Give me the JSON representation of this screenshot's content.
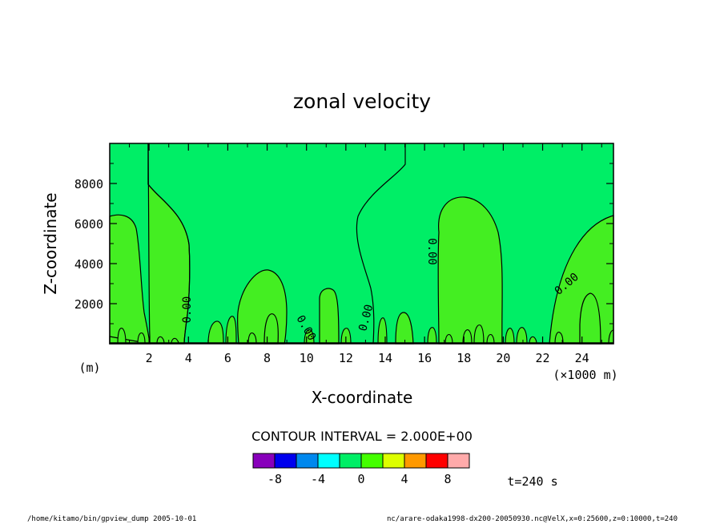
{
  "chart_data": {
    "type": "contour",
    "title": "zonal velocity",
    "xlabel": "X-coordinate",
    "ylabel": "Z-coordinate",
    "x_unit_label": "(×1000 m)",
    "y_unit_label": "(m)",
    "xlim": [
      0,
      25.6
    ],
    "ylim": [
      0,
      10000
    ],
    "x_ticks": [
      "2",
      "4",
      "6",
      "8",
      "10",
      "12",
      "14",
      "16",
      "18",
      "20",
      "22",
      "24"
    ],
    "x_tick_values": [
      2,
      4,
      6,
      8,
      10,
      12,
      14,
      16,
      18,
      20,
      22,
      24
    ],
    "y_ticks": [
      "2000",
      "4000",
      "6000",
      "8000"
    ],
    "y_tick_values": [
      2000,
      4000,
      6000,
      8000
    ],
    "contour_labels": [
      {
        "text": "0.00",
        "x": 3.9,
        "z": 1700,
        "angle": -90
      },
      {
        "text": "0.00",
        "x": 10.0,
        "z": 800,
        "angle": 60
      },
      {
        "text": "0.00",
        "x": 13.0,
        "z": 1300,
        "angle": -75
      },
      {
        "text": "0.00",
        "x": 16.4,
        "z": 4600,
        "angle": 90
      },
      {
        "text": "0.00",
        "x": 23.2,
        "z": 3000,
        "angle": -40
      }
    ],
    "contour_interval_text": "CONTOUR INTERVAL = 2.000E+00",
    "colorbar": {
      "colors": [
        "#8800bb",
        "#0000ee",
        "#0088ee",
        "#00ffff",
        "#00ee66",
        "#44ff00",
        "#ddff00",
        "#ff9900",
        "#ff0000",
        "#ffaaaa"
      ],
      "tick_labels": [
        "-8",
        "-4",
        "0",
        "4",
        "8"
      ],
      "tick_values": [
        -8,
        -4,
        0,
        4,
        8
      ]
    },
    "fill_colors": {
      "negative": "#00ee66",
      "positive": "#44ee22"
    }
  },
  "annotations": {
    "time": "t=240 s",
    "footer_left": "/home/kitamo/bin/gpview_dump  2005-10-01",
    "footer_right": "nc/arare-odaka1998-dx200-20050930.nc@VelX,x=0:25600,z=0:10000,t=240"
  }
}
